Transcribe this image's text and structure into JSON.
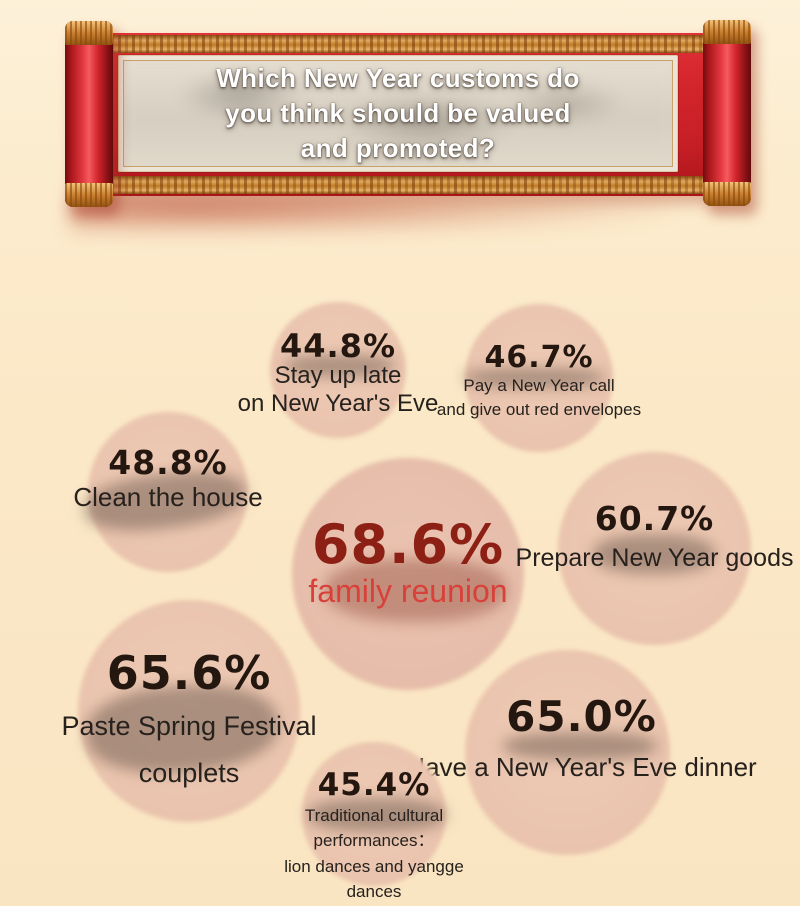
{
  "banner": {
    "title_lines": [
      "Which New Year customs do",
      "you think should be valued",
      "and promoted?"
    ]
  },
  "bubbles": [
    {
      "pct": "44.8%",
      "lines": [
        "Stay up late",
        "on New Year's Eve"
      ]
    },
    {
      "pct": "46.7%",
      "lines": [
        "Pay a New Year call",
        "and give out red envelopes"
      ]
    },
    {
      "pct": "48.8%",
      "lines": [
        "Clean the house"
      ]
    },
    {
      "pct": "68.6%",
      "lines": [
        "family reunion"
      ]
    },
    {
      "pct": "60.7%",
      "lines": [
        "Prepare New Year goods"
      ]
    },
    {
      "pct": "65.6%",
      "lines": [
        "Paste Spring Festival",
        "couplets"
      ]
    },
    {
      "pct": "65.0%",
      "lines": [
        "Have a New Year's Eve dinner"
      ]
    },
    {
      "pct": "45.4%",
      "lines": [
        "Traditional cultural",
        "performances：",
        "lion dances and yangge",
        "dances"
      ]
    }
  ],
  "colors": {
    "background_cream": "#fbe8c6",
    "scroll_red": "#d2242b",
    "scroll_gold_trim": "#d99a4e",
    "bubble_pink": "#eac4ae",
    "percent_text": "#241710",
    "label_text": "#26211d",
    "highlight_percent_red": "#8c2014",
    "highlight_label_red": "#d8413a",
    "banner_text": "#ffffff"
  },
  "chart_data": {
    "type": "scatter",
    "variant": "bubble-infographic",
    "title": "Which New Year customs do you think should be valued and promoted?",
    "legend": "none",
    "unit": "%",
    "items": [
      {
        "label": "Stay up late on New Year's Eve",
        "value": 44.8
      },
      {
        "label": "Pay a New Year call and give out red envelopes",
        "value": 46.7
      },
      {
        "label": "Clean the house",
        "value": 48.8
      },
      {
        "label": "family reunion",
        "value": 68.6,
        "highlight": true
      },
      {
        "label": "Prepare New Year goods",
        "value": 60.7
      },
      {
        "label": "Paste Spring Festival couplets",
        "value": 65.6
      },
      {
        "label": "Have a New Year's Eve dinner",
        "value": 65.0
      },
      {
        "label": "Traditional cultural performances：lion dances and yangge dances",
        "value": 45.4
      }
    ]
  }
}
